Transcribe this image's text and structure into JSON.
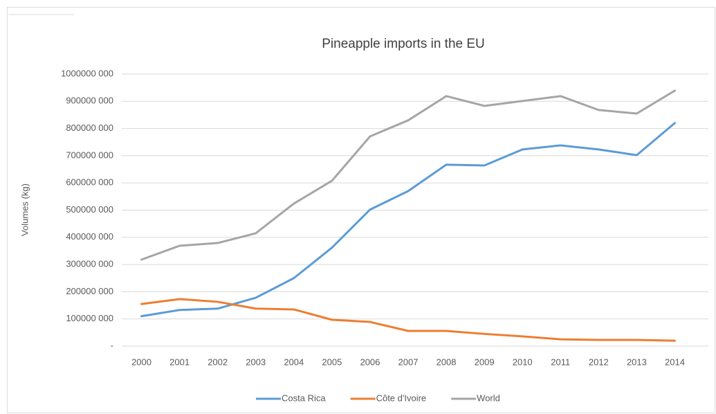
{
  "chart_data": {
    "type": "line",
    "title": "Pineapple imports in the EU",
    "ylabel": "Volumes (kg)",
    "categories": [
      "2000",
      "2001",
      "2002",
      "2003",
      "2004",
      "2005",
      "2006",
      "2007",
      "2008",
      "2009",
      "2010",
      "2011",
      "2012",
      "2013",
      "2014"
    ],
    "series": [
      {
        "name": "Costa Rica",
        "color": "#5b9bd5",
        "values": [
          110000000,
          133000000,
          138000000,
          178000000,
          250000000,
          362000000,
          502000000,
          570000000,
          667000000,
          664000000,
          723000000,
          738000000,
          723000000,
          702000000,
          820000000
        ]
      },
      {
        "name": "Côte d'Ivoire",
        "color": "#ed7d31",
        "values": [
          155000000,
          173000000,
          163000000,
          138000000,
          135000000,
          97000000,
          89000000,
          56000000,
          56000000,
          45000000,
          36000000,
          25000000,
          23000000,
          23000000,
          20000000
        ]
      },
      {
        "name": "World",
        "color": "#a5a5a5",
        "values": [
          318000000,
          369000000,
          379000000,
          415000000,
          524000000,
          608000000,
          771000000,
          830000000,
          919000000,
          883000000,
          901000000,
          919000000,
          868000000,
          855000000,
          939000000
        ]
      }
    ],
    "ylim": [
      0,
      1000000000
    ],
    "yticks": [
      {
        "value": 0,
        "label": "-"
      },
      {
        "value": 100000000,
        "label": "100000 000"
      },
      {
        "value": 200000000,
        "label": "200000 000"
      },
      {
        "value": 300000000,
        "label": "300000 000"
      },
      {
        "value": 400000000,
        "label": "400000 000"
      },
      {
        "value": 500000000,
        "label": "500000 000"
      },
      {
        "value": 600000000,
        "label": "600000 000"
      },
      {
        "value": 700000000,
        "label": "700000 000"
      },
      {
        "value": 800000000,
        "label": "800000 000"
      },
      {
        "value": 900000000,
        "label": "900000 000"
      },
      {
        "value": 1000000000,
        "label": "1000000 000"
      }
    ],
    "grid": true,
    "legend": "bottom"
  }
}
